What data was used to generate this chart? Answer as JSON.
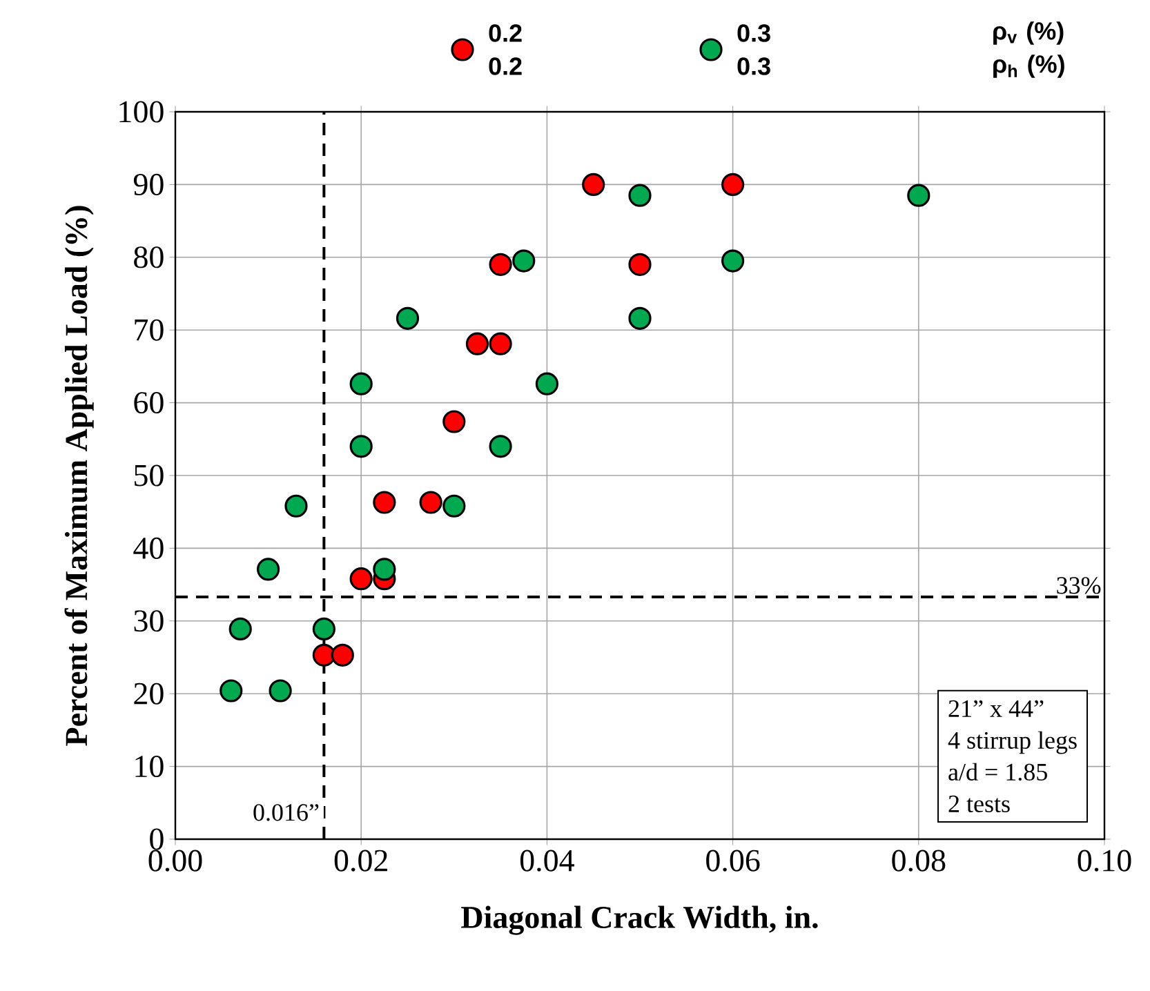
{
  "chart_data": {
    "type": "scatter",
    "xlabel": "Diagonal Crack Width, in.",
    "ylabel": "Percent of Maximum Applied Load (%)",
    "legend_title": "ρ$_{v}$ (%) ρ$_{h}$ (%)",
    "series": [
      {
        "name": "0.2 0.2",
        "color": "#ff0000",
        "x": [
          0.016,
          0.018,
          0.02,
          0.0225,
          0.0225,
          0.0275,
          0.03,
          0.0325,
          0.035,
          0.035,
          0.045,
          0.05,
          0.06
        ],
        "values": [
          25.3,
          25.3,
          35.8,
          35.8,
          46.3,
          46.3,
          57.4,
          68.1,
          68.1,
          79.0,
          90.0,
          79.0,
          90.0
        ]
      },
      {
        "name": "0.3 0.3",
        "color": "#00a84f",
        "x": [
          0.006,
          0.0113,
          0.007,
          0.016,
          0.01,
          0.0225,
          0.013,
          0.03,
          0.02,
          0.035,
          0.02,
          0.04,
          0.025,
          0.05,
          0.0375,
          0.06,
          0.05,
          0.08
        ],
        "values": [
          20.4,
          20.4,
          28.9,
          28.9,
          37.1,
          37.1,
          45.8,
          45.8,
          54.0,
          54.0,
          62.6,
          62.6,
          71.6,
          71.6,
          79.5,
          79.5,
          88.5,
          88.5
        ]
      }
    ],
    "xlim": [
      0,
      0.1
    ],
    "xticks": [
      {
        "value": 0,
        "label": "0.00"
      },
      {
        "value": 0.02,
        "label": "0.02"
      },
      {
        "value": 0.04,
        "label": "0.04"
      },
      {
        "value": 0.06,
        "label": "0.06"
      },
      {
        "value": 0.08,
        "label": "0.08"
      },
      {
        "value": 0.1,
        "label": "0.10"
      }
    ],
    "ylim": [
      0,
      100
    ],
    "yticks": [
      0,
      10,
      20,
      30,
      40,
      50,
      60,
      70,
      80,
      90,
      100
    ],
    "ref_lines": [
      {
        "axis": "y",
        "value": 33.3,
        "label": "33%",
        "color": "#000000",
        "line_style": "dashed"
      },
      {
        "axis": "x",
        "value": 0.016,
        "label": "0.016”",
        "color": "#000000",
        "line_style": "dashed"
      }
    ],
    "annotations": [
      "21” x 44”",
      "4 stirrup legs",
      "a/d = 1.85",
      "2 tests"
    ],
    "grid": true,
    "legend": "top",
    "marker": "circle"
  }
}
